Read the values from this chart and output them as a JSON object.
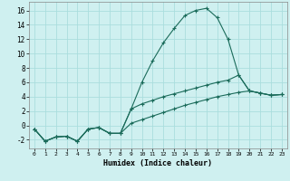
{
  "xlabel": "Humidex (Indice chaleur)",
  "background_color": "#cff0f0",
  "grid_color": "#aadddd",
  "line_color": "#1a6b5a",
  "xlim": [
    -0.5,
    23.5
  ],
  "ylim": [
    -3.2,
    17.2
  ],
  "xticks": [
    0,
    1,
    2,
    3,
    4,
    5,
    6,
    7,
    8,
    9,
    10,
    11,
    12,
    13,
    14,
    15,
    16,
    17,
    18,
    19,
    20,
    21,
    22,
    23
  ],
  "yticks": [
    -2,
    0,
    2,
    4,
    6,
    8,
    10,
    12,
    14,
    16
  ],
  "series1_y": [
    -0.5,
    -2.2,
    -1.6,
    -1.5,
    -2.2,
    -0.5,
    -0.3,
    -1.1,
    -1.1,
    2.3,
    6.0,
    9.0,
    11.5,
    13.5,
    15.3,
    16.0,
    16.3,
    15.0,
    12.0,
    7.0,
    4.8,
    4.5,
    4.2,
    4.3
  ],
  "series2_y": [
    -0.5,
    -2.2,
    -1.6,
    -1.5,
    -2.2,
    -0.5,
    -0.3,
    -1.1,
    -1.1,
    2.3,
    3.0,
    3.5,
    4.0,
    4.4,
    4.8,
    5.2,
    5.6,
    6.0,
    6.3,
    7.0,
    4.8,
    4.5,
    4.2,
    4.3
  ],
  "series3_y": [
    -0.5,
    -2.2,
    -1.6,
    -1.5,
    -2.2,
    -0.5,
    -0.3,
    -1.1,
    -1.1,
    0.3,
    0.8,
    1.3,
    1.8,
    2.3,
    2.8,
    3.2,
    3.6,
    4.0,
    4.3,
    4.6,
    4.8,
    4.5,
    4.2,
    4.3
  ]
}
